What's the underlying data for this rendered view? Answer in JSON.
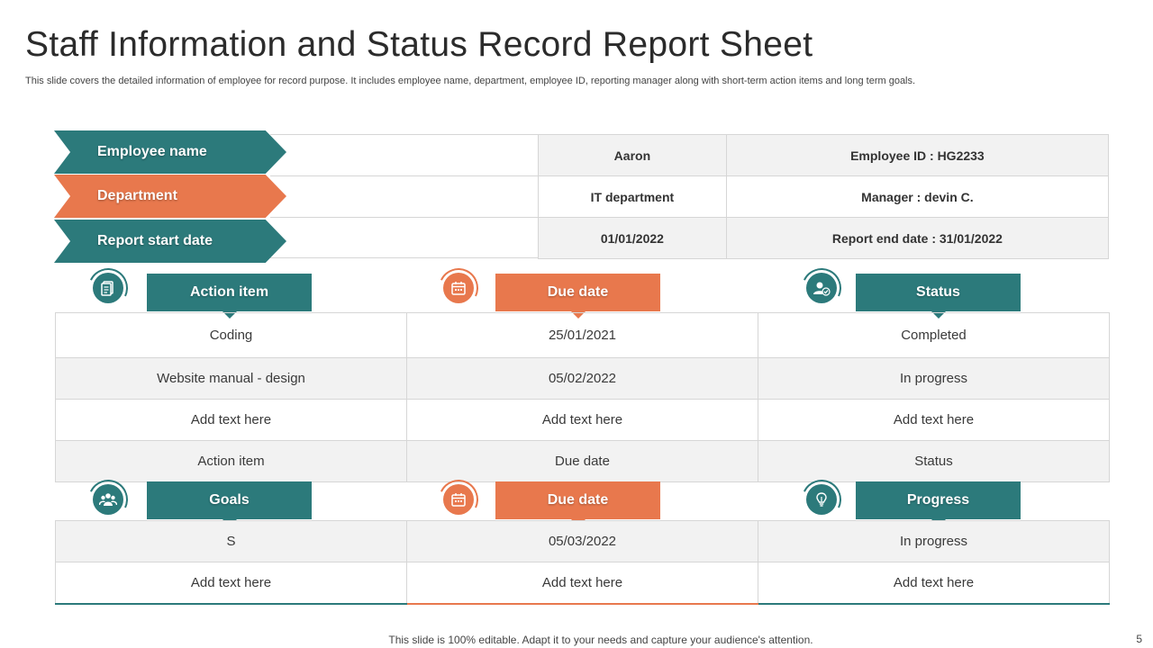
{
  "header": {
    "title": "Staff Information and Status Record Report Sheet",
    "subtitle": "This slide covers the detailed information of employee for record purpose. It includes employee name, department, employee ID, reporting manager along with short-term action items and long term goals."
  },
  "info": {
    "labels": [
      "Employee name",
      "Department",
      "Report start date"
    ],
    "rows": [
      {
        "value": "Aaron",
        "extra": "Employee ID : HG2233"
      },
      {
        "value": "IT department",
        "extra": "Manager : devin C."
      },
      {
        "value": "01/01/2022",
        "extra": "Report end date  : 31/01/2022"
      }
    ]
  },
  "actions": {
    "headers": [
      "Action item",
      "Due date",
      "Status"
    ],
    "icons": [
      "document-icon",
      "calendar-icon",
      "user-check-icon"
    ],
    "rows": [
      [
        "Coding",
        "25/01/2021",
        "Completed"
      ],
      [
        "Website manual - design",
        "05/02/2022",
        "In progress"
      ],
      [
        "Add text here",
        "Add text here",
        "Add text here"
      ],
      [
        "Action item",
        "Due date",
        "Status"
      ]
    ]
  },
  "goals": {
    "headers": [
      "Goals",
      "Due date",
      "Progress"
    ],
    "icons": [
      "team-icon",
      "calendar-icon",
      "lightbulb-icon"
    ],
    "rows": [
      [
        "S",
        "05/03/2022",
        "In progress"
      ],
      [
        "Add text here",
        "Add text here",
        "Add text here"
      ]
    ]
  },
  "footer": {
    "note": "This slide is 100% editable. Adapt it to your needs and capture your audience's attention.",
    "page": "5"
  },
  "colors": {
    "teal": "#2c7a7b",
    "orange": "#e8784d"
  }
}
